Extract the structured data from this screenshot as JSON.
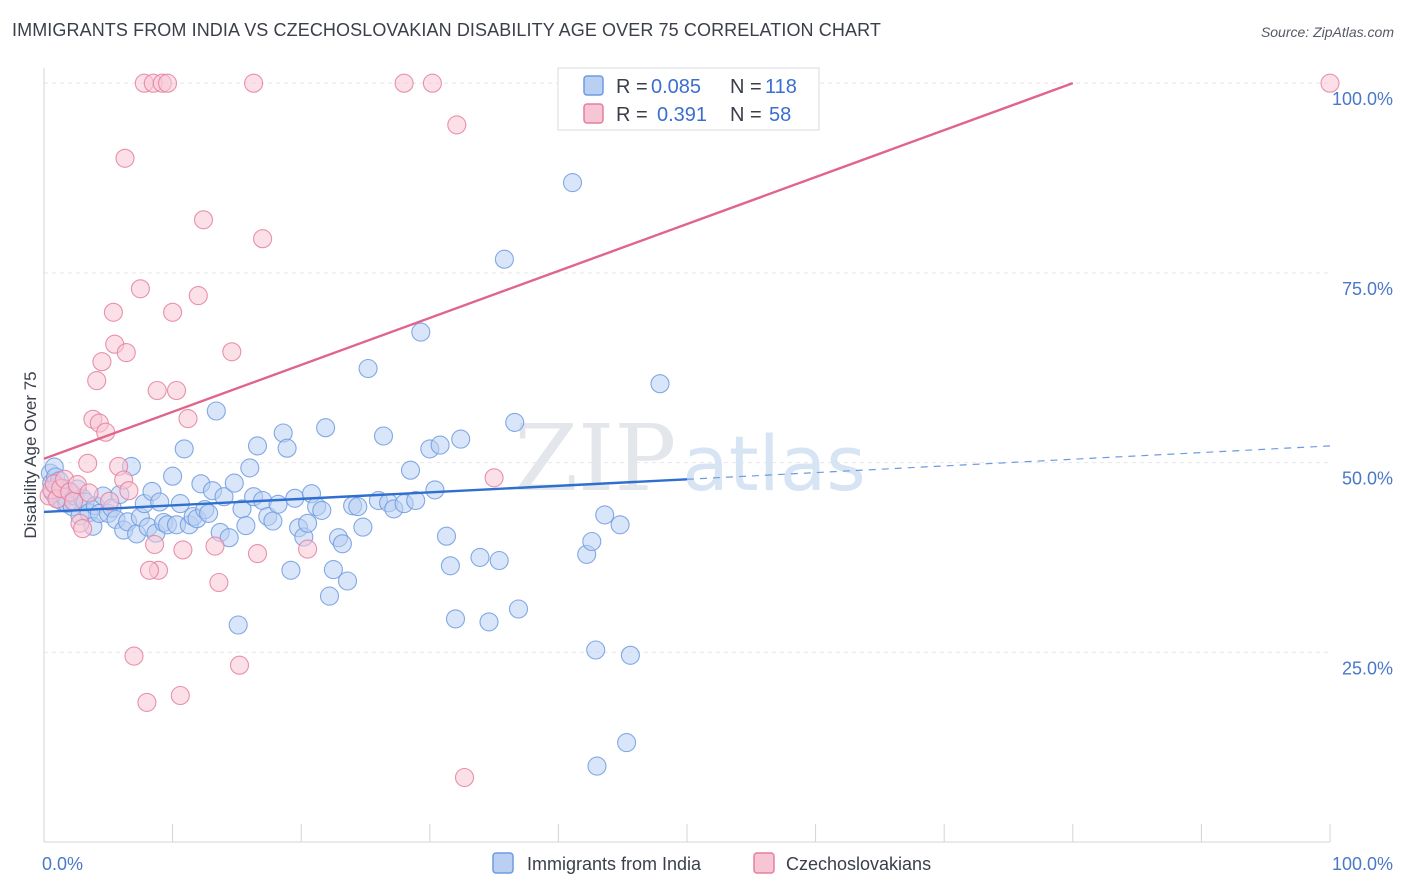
{
  "title": "IMMIGRANTS FROM INDIA VS CZECHOSLOVAKIAN DISABILITY AGE OVER 75 CORRELATION CHART",
  "source": "Source: ZipAtlas.com",
  "chart_data": {
    "type": "scatter",
    "xlabel": "",
    "ylabel": "Disability Age Over 75",
    "xlim": [
      0,
      100
    ],
    "ylim": [
      0,
      102
    ],
    "x_tick_labels": [
      {
        "value": 0,
        "label": "0.0%"
      },
      {
        "value": 100,
        "label": "100.0%"
      }
    ],
    "y_tick_labels": [
      {
        "value": 25,
        "label": "25.0%"
      },
      {
        "value": 50,
        "label": "50.0%"
      },
      {
        "value": 75,
        "label": "75.0%"
      },
      {
        "value": 100,
        "label": "100.0%"
      }
    ],
    "grid": true,
    "watermark": {
      "zip": "ZIP",
      "atlas": "atlas"
    },
    "legend": {
      "position": "top-center",
      "entries": [
        {
          "r_label": "R =",
          "r_value": "0.085",
          "n_label": "N =",
          "n_value": "118"
        },
        {
          "r_label": "R =",
          "r_value": "0.391",
          "n_label": "N =",
          "n_value": "58"
        }
      ]
    },
    "series": [
      {
        "name": "Immigrants from India",
        "color": "#6e9be0",
        "fill": "#b9d0f2",
        "trend": {
          "x0": 0,
          "y0": 43.5,
          "x1": 50,
          "y1": 47.8,
          "dash_to_x": 100,
          "dash_to_y": 52.2
        },
        "points": [
          [
            0.5,
            48.6
          ],
          [
            0.6,
            47.3
          ],
          [
            0.7,
            46.0
          ],
          [
            0.8,
            49.4
          ],
          [
            0.9,
            48.1
          ],
          [
            1.0,
            46.8
          ],
          [
            1.1,
            45.2
          ],
          [
            1.2,
            47.6
          ],
          [
            1.3,
            45.9
          ],
          [
            1.4,
            44.9
          ],
          [
            1.5,
            46.6
          ],
          [
            1.6,
            45.5
          ],
          [
            1.8,
            44.6
          ],
          [
            2.0,
            46.2
          ],
          [
            2.2,
            44.2
          ],
          [
            2.4,
            45.6
          ],
          [
            2.6,
            46.5
          ],
          [
            2.8,
            43.0
          ],
          [
            3.0,
            45.3
          ],
          [
            3.2,
            44.8
          ],
          [
            3.5,
            43.4
          ],
          [
            3.8,
            41.6
          ],
          [
            4.0,
            44.3
          ],
          [
            4.3,
            43.3
          ],
          [
            4.6,
            45.6
          ],
          [
            5.0,
            43.3
          ],
          [
            5.3,
            44.0
          ],
          [
            5.6,
            42.5
          ],
          [
            5.9,
            45.8
          ],
          [
            6.2,
            41.1
          ],
          [
            6.5,
            42.2
          ],
          [
            6.8,
            49.5
          ],
          [
            7.2,
            40.6
          ],
          [
            7.5,
            42.8
          ],
          [
            7.8,
            44.6
          ],
          [
            8.1,
            41.5
          ],
          [
            8.4,
            46.2
          ],
          [
            8.7,
            40.7
          ],
          [
            9.0,
            44.8
          ],
          [
            9.3,
            42.1
          ],
          [
            9.6,
            41.8
          ],
          [
            10.0,
            48.2
          ],
          [
            10.3,
            41.8
          ],
          [
            10.6,
            44.6
          ],
          [
            10.9,
            51.8
          ],
          [
            11.3,
            41.8
          ],
          [
            11.6,
            42.9
          ],
          [
            11.9,
            42.6
          ],
          [
            12.2,
            47.2
          ],
          [
            12.5,
            43.8
          ],
          [
            12.8,
            43.3
          ],
          [
            13.1,
            46.3
          ],
          [
            13.4,
            56.8
          ],
          [
            13.7,
            40.8
          ],
          [
            14.0,
            45.5
          ],
          [
            14.4,
            40.1
          ],
          [
            14.8,
            47.3
          ],
          [
            15.1,
            28.6
          ],
          [
            15.4,
            43.9
          ],
          [
            15.7,
            41.7
          ],
          [
            16.0,
            49.3
          ],
          [
            16.3,
            45.5
          ],
          [
            16.6,
            52.2
          ],
          [
            17.0,
            45.0
          ],
          [
            17.4,
            42.9
          ],
          [
            17.8,
            42.3
          ],
          [
            18.2,
            44.5
          ],
          [
            18.6,
            53.9
          ],
          [
            18.9,
            51.9
          ],
          [
            19.2,
            35.8
          ],
          [
            19.5,
            45.3
          ],
          [
            19.8,
            41.4
          ],
          [
            20.2,
            40.2
          ],
          [
            20.5,
            42.0
          ],
          [
            20.8,
            45.9
          ],
          [
            21.2,
            44.2
          ],
          [
            21.6,
            43.7
          ],
          [
            21.9,
            54.6
          ],
          [
            22.2,
            32.4
          ],
          [
            22.5,
            35.9
          ],
          [
            22.9,
            40.1
          ],
          [
            23.2,
            39.3
          ],
          [
            23.6,
            34.4
          ],
          [
            24.0,
            44.3
          ],
          [
            24.4,
            44.2
          ],
          [
            24.8,
            41.5
          ],
          [
            25.2,
            62.4
          ],
          [
            26.0,
            45.0
          ],
          [
            26.4,
            53.5
          ],
          [
            26.8,
            44.7
          ],
          [
            27.2,
            43.9
          ],
          [
            28.0,
            44.6
          ],
          [
            28.5,
            49.0
          ],
          [
            28.9,
            45.0
          ],
          [
            29.3,
            67.2
          ],
          [
            30.0,
            51.8
          ],
          [
            30.4,
            46.4
          ],
          [
            30.8,
            52.3
          ],
          [
            31.3,
            40.3
          ],
          [
            31.6,
            36.4
          ],
          [
            32.0,
            29.4
          ],
          [
            32.4,
            53.1
          ],
          [
            33.9,
            37.5
          ],
          [
            34.6,
            29.0
          ],
          [
            35.4,
            37.1
          ],
          [
            35.8,
            76.8
          ],
          [
            36.6,
            55.3
          ],
          [
            36.9,
            30.7
          ],
          [
            41.1,
            86.9
          ],
          [
            42.2,
            37.9
          ],
          [
            42.6,
            39.6
          ],
          [
            42.9,
            25.3
          ],
          [
            43.6,
            43.1
          ],
          [
            44.8,
            41.8
          ],
          [
            45.3,
            13.1
          ],
          [
            45.6,
            24.6
          ],
          [
            47.9,
            60.4
          ],
          [
            43.0,
            10.0
          ]
        ]
      },
      {
        "name": "Czechoslovakians",
        "color": "#e57fa0",
        "fill": "#f7c6d5",
        "trend": {
          "x0": 0,
          "y0": 50.5,
          "x1": 80,
          "y1": 100,
          "dash_to_x": 80,
          "dash_to_y": 100
        },
        "points": [
          [
            0.4,
            45.6
          ],
          [
            0.6,
            46.4
          ],
          [
            0.8,
            47.2
          ],
          [
            1.0,
            45.2
          ],
          [
            1.3,
            46.6
          ],
          [
            1.6,
            47.8
          ],
          [
            2.0,
            46.1
          ],
          [
            2.3,
            44.9
          ],
          [
            2.6,
            47.1
          ],
          [
            2.8,
            42.0
          ],
          [
            3.0,
            41.3
          ],
          [
            3.4,
            49.9
          ],
          [
            3.5,
            46.0
          ],
          [
            3.8,
            55.7
          ],
          [
            4.1,
            60.8
          ],
          [
            4.3,
            55.2
          ],
          [
            4.5,
            63.3
          ],
          [
            4.8,
            54.0
          ],
          [
            5.1,
            44.9
          ],
          [
            5.4,
            69.8
          ],
          [
            5.5,
            65.6
          ],
          [
            5.8,
            49.5
          ],
          [
            6.2,
            47.7
          ],
          [
            6.3,
            90.1
          ],
          [
            6.4,
            64.5
          ],
          [
            6.6,
            46.3
          ],
          [
            7.0,
            24.5
          ],
          [
            7.5,
            72.9
          ],
          [
            7.8,
            100.0
          ],
          [
            8.0,
            18.4
          ],
          [
            8.5,
            100.0
          ],
          [
            8.6,
            39.2
          ],
          [
            8.8,
            59.5
          ],
          [
            8.9,
            35.8
          ],
          [
            9.2,
            100.0
          ],
          [
            9.6,
            100.0
          ],
          [
            10.0,
            69.8
          ],
          [
            10.3,
            59.5
          ],
          [
            10.6,
            19.3
          ],
          [
            10.8,
            38.5
          ],
          [
            11.2,
            55.8
          ],
          [
            12.0,
            72.0
          ],
          [
            12.4,
            82.0
          ],
          [
            13.3,
            39.0
          ],
          [
            13.6,
            34.2
          ],
          [
            14.6,
            64.6
          ],
          [
            15.2,
            23.3
          ],
          [
            16.3,
            100.0
          ],
          [
            16.6,
            38.0
          ],
          [
            17.0,
            79.5
          ],
          [
            20.5,
            38.6
          ],
          [
            28.0,
            100.0
          ],
          [
            30.2,
            100.0
          ],
          [
            32.1,
            94.5
          ],
          [
            32.7,
            8.5
          ],
          [
            35.0,
            48.0
          ],
          [
            100.0,
            100.0
          ],
          [
            8.2,
            35.8
          ]
        ]
      }
    ]
  }
}
